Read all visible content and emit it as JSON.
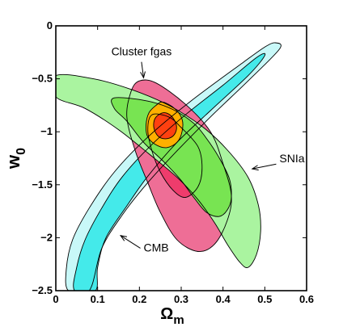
{
  "chart_data": {
    "type": "contour",
    "xlabel": "Ω",
    "xlabel_sub": "m",
    "ylabel": "w",
    "ylabel_sub": "0",
    "xlim": [
      0,
      0.6
    ],
    "ylim": [
      -2.5,
      0
    ],
    "xticks": [
      0,
      0.1,
      0.2,
      0.3,
      0.4,
      0.5,
      0.6
    ],
    "xtick_labels": [
      "0",
      "0.1",
      "0.2",
      "0.3",
      "0.4",
      "0.5",
      "0.6"
    ],
    "yticks": [
      0,
      -0.5,
      -1,
      -1.5,
      -2,
      -2.5
    ],
    "ytick_labels": [
      "0",
      "−0.5",
      "−1",
      "−1.5",
      "−2",
      "−2.5"
    ],
    "annotations": [
      {
        "text": "Cluster fgas",
        "x": 0.205,
        "y": -0.28,
        "arrow_to": [
          0.21,
          -0.49
        ]
      },
      {
        "text": "SNIa",
        "x": 0.535,
        "y": -1.29,
        "arrow_to": [
          0.47,
          -1.35
        ]
      },
      {
        "text": "CMB",
        "x": 0.21,
        "y": -2.13,
        "arrow_to": [
          0.155,
          -1.98
        ]
      }
    ],
    "series": [
      {
        "colors": {
          "outer": "#c8f8f8",
          "inner": "#44eaea"
        },
        "contours": [
          [
            [
              0.03,
              -2.5
            ],
            [
              0.025,
              -2.3
            ],
            [
              0.04,
              -2.02
            ],
            [
              0.08,
              -1.72
            ],
            [
              0.14,
              -1.38
            ],
            [
              0.22,
              -1.05
            ],
            [
              0.32,
              -0.72
            ],
            [
              0.45,
              -0.34
            ],
            [
              0.5,
              -0.2
            ],
            [
              0.525,
              -0.16
            ],
            [
              0.535,
              -0.22
            ],
            [
              0.46,
              -0.52
            ],
            [
              0.37,
              -0.86
            ],
            [
              0.29,
              -1.18
            ],
            [
              0.22,
              -1.48
            ],
            [
              0.16,
              -1.78
            ],
            [
              0.11,
              -2.1
            ],
            [
              0.08,
              -2.5
            ]
          ],
          [
            [
              0.045,
              -2.5
            ],
            [
              0.05,
              -2.28
            ],
            [
              0.07,
              -2.02
            ],
            [
              0.11,
              -1.72
            ],
            [
              0.16,
              -1.42
            ],
            [
              0.23,
              -1.12
            ],
            [
              0.31,
              -0.84
            ],
            [
              0.4,
              -0.56
            ],
            [
              0.48,
              -0.3
            ],
            [
              0.5,
              -0.28
            ],
            [
              0.46,
              -0.47
            ],
            [
              0.37,
              -0.8
            ],
            [
              0.29,
              -1.1
            ],
            [
              0.22,
              -1.42
            ],
            [
              0.17,
              -1.7
            ],
            [
              0.12,
              -2.0
            ],
            [
              0.1,
              -2.28
            ],
            [
              0.095,
              -2.5
            ]
          ]
        ]
      },
      {
        "colors": {
          "outer": "#ee6e96",
          "inner": "#ee3c6c"
        },
        "contours": [
          [
            [
              0.2,
              -0.52
            ],
            [
              0.24,
              -0.54
            ],
            [
              0.31,
              -0.74
            ],
            [
              0.37,
              -1.0
            ],
            [
              0.4,
              -1.3
            ],
            [
              0.42,
              -1.6
            ],
            [
              0.41,
              -1.84
            ],
            [
              0.38,
              -2.06
            ],
            [
              0.34,
              -2.13
            ],
            [
              0.29,
              -2.02
            ],
            [
              0.25,
              -1.76
            ],
            [
              0.22,
              -1.48
            ],
            [
              0.19,
              -1.18
            ],
            [
              0.17,
              -0.86
            ],
            [
              0.18,
              -0.62
            ]
          ],
          [
            [
              0.23,
              -0.84
            ],
            [
              0.27,
              -0.86
            ],
            [
              0.3,
              -0.96
            ],
            [
              0.34,
              -1.14
            ],
            [
              0.35,
              -1.34
            ],
            [
              0.34,
              -1.52
            ],
            [
              0.31,
              -1.62
            ],
            [
              0.28,
              -1.55
            ],
            [
              0.25,
              -1.38
            ],
            [
              0.23,
              -1.18
            ],
            [
              0.22,
              -0.98
            ]
          ]
        ]
      },
      {
        "colors": {
          "outer": "#aaf4a0",
          "inner": "#78e452"
        },
        "contours": [
          [
            [
              0,
              -0.47
            ],
            [
              0.09,
              -0.5
            ],
            [
              0.18,
              -0.6
            ],
            [
              0.27,
              -0.75
            ],
            [
              0.35,
              -0.95
            ],
            [
              0.41,
              -1.17
            ],
            [
              0.46,
              -1.43
            ],
            [
              0.485,
              -1.7
            ],
            [
              0.49,
              -1.94
            ],
            [
              0.48,
              -2.16
            ],
            [
              0.46,
              -2.28
            ],
            [
              0.44,
              -2.23
            ],
            [
              0.41,
              -2.06
            ],
            [
              0.38,
              -1.86
            ],
            [
              0.34,
              -1.64
            ],
            [
              0.29,
              -1.43
            ],
            [
              0.22,
              -1.2
            ],
            [
              0.15,
              -0.98
            ],
            [
              0.07,
              -0.78
            ],
            [
              0,
              -0.67
            ]
          ],
          [
            [
              0.14,
              -0.68
            ],
            [
              0.22,
              -0.71
            ],
            [
              0.28,
              -0.79
            ],
            [
              0.33,
              -0.92
            ],
            [
              0.36,
              -1.06
            ],
            [
              0.39,
              -1.24
            ],
            [
              0.415,
              -1.44
            ],
            [
              0.42,
              -1.62
            ],
            [
              0.41,
              -1.74
            ],
            [
              0.39,
              -1.8
            ],
            [
              0.36,
              -1.76
            ],
            [
              0.33,
              -1.62
            ],
            [
              0.3,
              -1.46
            ],
            [
              0.26,
              -1.29
            ],
            [
              0.21,
              -1.1
            ],
            [
              0.17,
              -0.9
            ],
            [
              0.14,
              -0.78
            ]
          ]
        ]
      },
      {
        "colors": {
          "outer": "#ffb000",
          "inner": "#ff4010"
        },
        "contours": [
          [
            [
              0.256,
              -0.72
            ],
            [
              0.284,
              -0.78
            ],
            [
              0.302,
              -0.88
            ],
            [
              0.302,
              -1.0
            ],
            [
              0.29,
              -1.1
            ],
            [
              0.265,
              -1.15
            ],
            [
              0.238,
              -1.12
            ],
            [
              0.219,
              -1.04
            ],
            [
              0.216,
              -0.93
            ],
            [
              0.223,
              -0.82
            ],
            [
              0.24,
              -0.75
            ]
          ],
          [
            [
              0.258,
              -0.82
            ],
            [
              0.276,
              -0.85
            ],
            [
              0.288,
              -0.93
            ],
            [
              0.286,
              -1.01
            ],
            [
              0.272,
              -1.06
            ],
            [
              0.252,
              -1.06
            ],
            [
              0.239,
              -1.01
            ],
            [
              0.234,
              -0.93
            ],
            [
              0.24,
              -0.86
            ]
          ]
        ]
      }
    ]
  }
}
